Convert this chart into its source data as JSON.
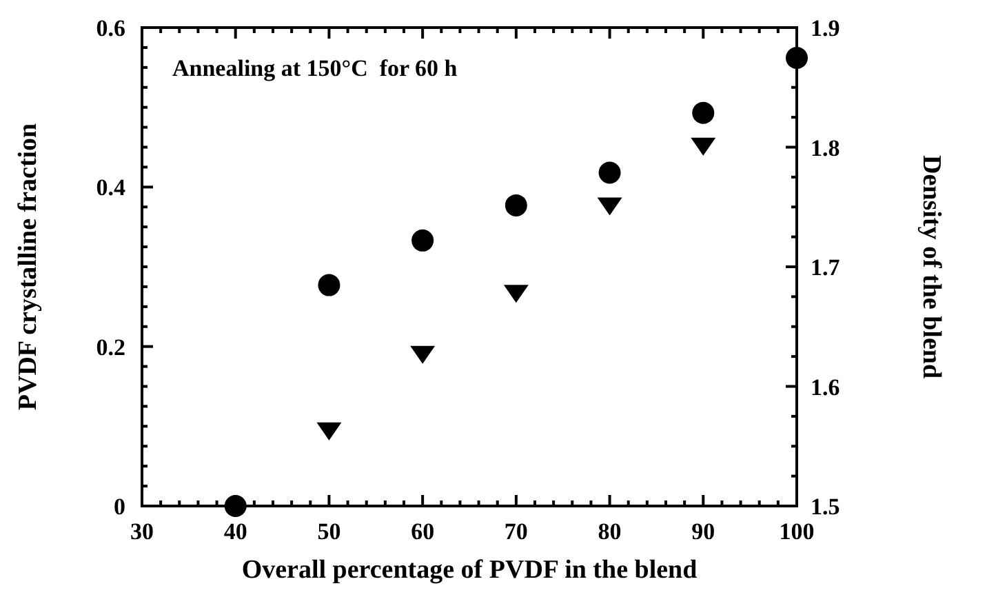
{
  "chart_data": {
    "type": "scatter",
    "xlabel": "Overall percentage of PVDF in the blend",
    "ylabel": "PVDF crystalline fraction",
    "y2label": "Density of the blend",
    "annotations": [
      "Annealing at 150°C  for 60 h"
    ],
    "x": [
      40,
      50,
      60,
      70,
      80,
      90,
      100
    ],
    "series": [
      {
        "color": "#000000",
        "values": [
          0,
          0.277,
          0.333,
          0.377,
          0.418,
          0.493,
          0.562
        ]
      },
      {
        "color": "#000000",
        "marker": "triangle",
        "axis": "y2",
        "x": [
          50,
          60,
          70,
          80,
          90
        ],
        "values": [
          1.563,
          1.627,
          1.678,
          1.751,
          1.801
        ]
      }
    ],
    "xlim": [
      30,
      100
    ],
    "ylim": [
      0,
      0.6
    ],
    "y2lim": [
      1.5,
      1.9
    ],
    "xticks": [
      30,
      {
        "value": 32,
        "label": null
      },
      {
        "value": 34,
        "label": null
      },
      {
        "value": 36,
        "label": null
      },
      {
        "value": 38,
        "label": null
      },
      40,
      {
        "value": 42,
        "label": null
      },
      {
        "value": 44,
        "label": null
      },
      {
        "value": 46,
        "label": null
      },
      {
        "value": 48,
        "label": null
      },
      50,
      {
        "value": 52,
        "label": null
      },
      {
        "value": 54,
        "label": null
      },
      {
        "value": 56,
        "label": null
      },
      {
        "value": 58,
        "label": null
      },
      60,
      {
        "value": 62,
        "label": null
      },
      {
        "value": 64,
        "label": null
      },
      {
        "value": 66,
        "label": null
      },
      {
        "value": 68,
        "label": null
      },
      70,
      {
        "value": 72,
        "label": null
      },
      {
        "value": 74,
        "label": null
      },
      {
        "value": 76,
        "label": null
      },
      {
        "value": 78,
        "label": null
      },
      80,
      {
        "value": 82,
        "label": null
      },
      {
        "value": 84,
        "label": null
      },
      {
        "value": 86,
        "label": null
      },
      {
        "value": 88,
        "label": null
      },
      90,
      {
        "value": 92,
        "label": null
      },
      {
        "value": 94,
        "label": null
      },
      {
        "value": 96,
        "label": null
      },
      {
        "value": 98,
        "label": null
      },
      100
    ],
    "yticks": [
      0,
      {
        "value": 0.025,
        "label": null
      },
      {
        "value": 0.05,
        "label": null
      },
      {
        "value": 0.075,
        "label": null
      },
      {
        "value": 0.1,
        "label": null
      },
      {
        "value": 0.125,
        "label": null
      },
      {
        "value": 0.15,
        "label": null
      },
      {
        "value": 0.175,
        "label": null
      },
      0.2,
      {
        "value": 0.225,
        "label": null
      },
      {
        "value": 0.25,
        "label": null
      },
      {
        "value": 0.275,
        "label": null
      },
      {
        "value": 0.3,
        "label": null
      },
      {
        "value": 0.325,
        "label": null
      },
      {
        "value": 0.35,
        "label": null
      },
      {
        "value": 0.375,
        "label": null
      },
      0.4,
      {
        "value": 0.425,
        "label": null
      },
      {
        "value": 0.45,
        "label": null
      },
      {
        "value": 0.475,
        "label": null
      },
      {
        "value": 0.5,
        "label": null
      },
      {
        "value": 0.525,
        "label": null
      },
      {
        "value": 0.55,
        "label": null
      },
      {
        "value": 0.575,
        "label": null
      },
      0.6
    ],
    "y2ticks": [
      1.5,
      {
        "value": 1.525,
        "label": null
      },
      {
        "value": 1.55,
        "label": null
      },
      {
        "value": 1.575,
        "label": null
      },
      1.6,
      {
        "value": 1.625,
        "label": null
      },
      {
        "value": 1.65,
        "label": null
      },
      {
        "value": 1.675,
        "label": null
      },
      1.7,
      {
        "value": 1.725,
        "label": null
      },
      {
        "value": 1.75,
        "label": null
      },
      {
        "value": 1.775,
        "label": null
      },
      1.8,
      {
        "value": 1.825,
        "label": null
      },
      {
        "value": 1.85,
        "label": null
      },
      {
        "value": 1.875,
        "label": null
      },
      1.9
    ],
    "marker": "circle"
  }
}
